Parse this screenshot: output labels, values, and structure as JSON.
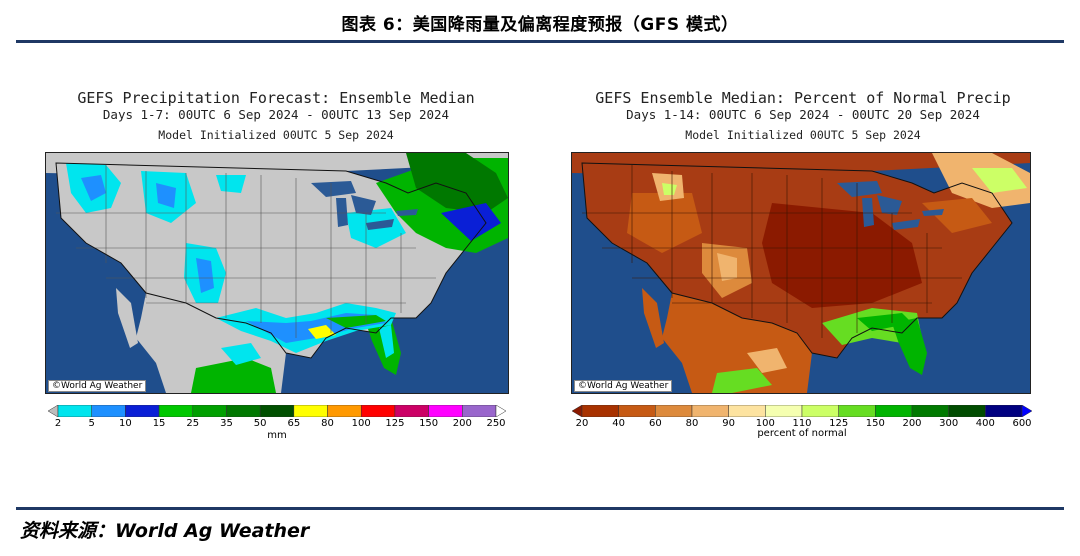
{
  "figure": {
    "title": "图表 6：美国降雨量及偏离程度预报（GFS 模式）",
    "source": "资料来源：World Ag Weather"
  },
  "left_panel": {
    "title": "GEFS Precipitation Forecast: Ensemble Median",
    "subtitle": "Days 1-7: 00UTC 6 Sep 2024 - 00UTC 13 Sep 2024",
    "init": "Model Initialized 00UTC 5 Sep 2024",
    "credit": "©World Ag Weather",
    "unit": "mm",
    "ticks": [
      "2",
      "5",
      "10",
      "15",
      "25",
      "35",
      "50",
      "65",
      "80",
      "100",
      "125",
      "150",
      "200",
      "250"
    ],
    "colors": [
      "#bdbdbd",
      "#00e5ee",
      "#1e90ff",
      "#0a1fd6",
      "#00c800",
      "#00a000",
      "#007800",
      "#005000",
      "#ffff00",
      "#ff9900",
      "#ff0000",
      "#cc0066",
      "#ff00ff",
      "#9966cc",
      "#ffffff"
    ]
  },
  "right_panel": {
    "title": "GEFS Ensemble Median: Percent of Normal Precip",
    "subtitle": "Days 1-14: 00UTC 6 Sep 2024 - 00UTC 20 Sep 2024",
    "init": "Model Initialized 00UTC 5 Sep 2024",
    "credit": "©World Ag Weather",
    "unit": "percent of normal",
    "ticks": [
      "20",
      "40",
      "60",
      "80",
      "90",
      "100",
      "110",
      "125",
      "150",
      "200",
      "300",
      "400",
      "600"
    ],
    "colors": [
      "#8b1a00",
      "#a83200",
      "#c65a14",
      "#dd8a3c",
      "#f0b46e",
      "#fde3a0",
      "#f5ffb0",
      "#ccff66",
      "#66dd22",
      "#00b400",
      "#007a00",
      "#004c00",
      "#000080",
      "#0000ff"
    ]
  },
  "map_colors": {
    "ocean": "#1f4e8c",
    "lakes": "#2b5a96",
    "land_dry_left": "#c8c8c8",
    "mexico_left": "#c8c8c8",
    "land_right": "#a83c14"
  }
}
